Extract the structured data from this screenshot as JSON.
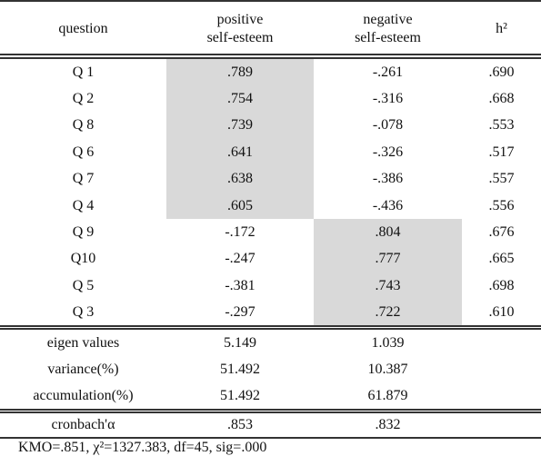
{
  "table": {
    "header": [
      "question",
      [
        "positive",
        "self-esteem"
      ],
      [
        "negative",
        "self-esteem"
      ],
      "h²"
    ],
    "rows": [
      [
        "Q 1",
        ".789",
        "-.261",
        ".690"
      ],
      [
        "Q 2",
        ".754",
        "-.316",
        ".668"
      ],
      [
        "Q 8",
        ".739",
        "-.078",
        ".553"
      ],
      [
        "Q 6",
        ".641",
        "-.326",
        ".517"
      ],
      [
        "Q 7",
        ".638",
        "-.386",
        ".557"
      ],
      [
        "Q 4",
        ".605",
        "-.436",
        ".556"
      ],
      [
        "Q 9",
        "-.172",
        ".804",
        ".676"
      ],
      [
        "Q10",
        "-.247",
        ".777",
        ".665"
      ],
      [
        "Q 5",
        "-.381",
        ".743",
        ".698"
      ],
      [
        "Q 3",
        "-.297",
        ".722",
        ".610"
      ]
    ],
    "summary": [
      [
        "eigen values",
        "5.149",
        "1.039"
      ],
      [
        "variance(%)",
        "51.492",
        "10.387"
      ],
      [
        "accumulation(%)",
        "51.492",
        "61.879"
      ]
    ],
    "reliability": [
      "cronbach'α",
      ".853",
      ".832"
    ],
    "footnote": "KMO=.851, χ²=1327.383, df=45, sig=.000"
  }
}
